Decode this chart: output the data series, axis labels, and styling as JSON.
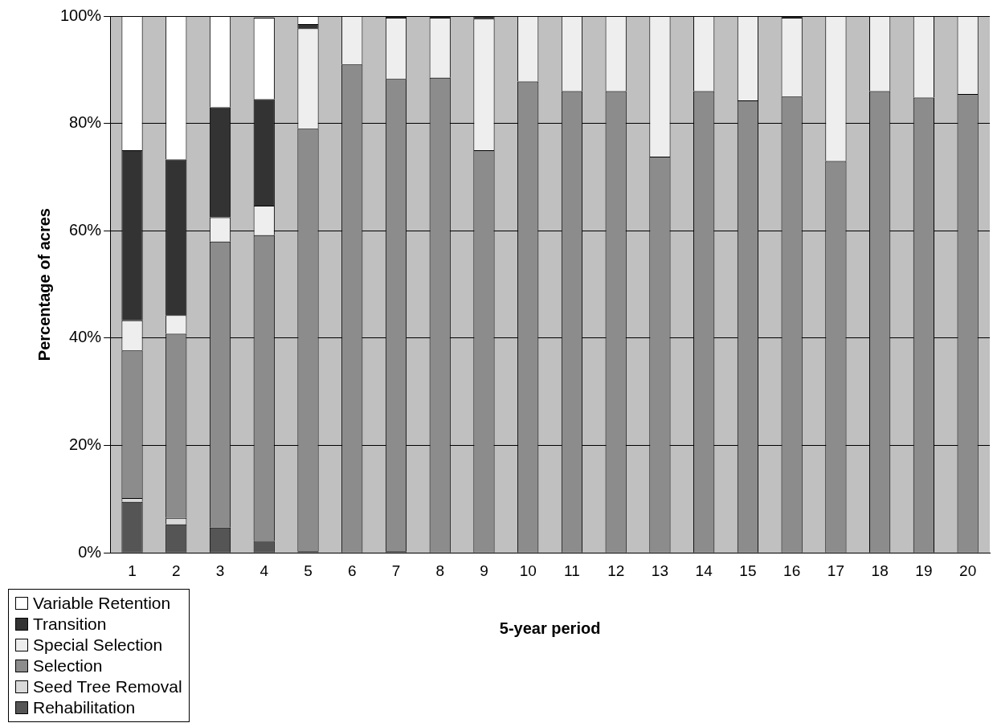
{
  "chart_data": {
    "type": "bar",
    "stacked": true,
    "xlabel": "5-year period",
    "ylabel": "Percentage of acres",
    "categories": [
      "1",
      "2",
      "3",
      "4",
      "5",
      "6",
      "7",
      "8",
      "9",
      "10",
      "11",
      "12",
      "13",
      "14",
      "15",
      "16",
      "17",
      "18",
      "19",
      "20"
    ],
    "ylim": [
      0,
      100
    ],
    "yticks": [
      {
        "value": 0,
        "label": "0%"
      },
      {
        "value": 20,
        "label": "20%"
      },
      {
        "value": 40,
        "label": "40%"
      },
      {
        "value": 60,
        "label": "60%"
      },
      {
        "value": 80,
        "label": "80%"
      },
      {
        "value": 100,
        "label": "100%"
      }
    ],
    "grid": "y",
    "legend": "bottom left",
    "series": [
      {
        "name": "Rehabilitation",
        "color": "#555555",
        "values": [
          9.5,
          5.3,
          4.7,
          2.2,
          0.3,
          0,
          0.3,
          0,
          0,
          0,
          0,
          0,
          0,
          0,
          0,
          0,
          0,
          0,
          0,
          0
        ]
      },
      {
        "name": "Seed Tree Removal",
        "color": "#d9d9d9",
        "values": [
          0.7,
          1.2,
          0,
          null,
          0,
          0,
          0,
          0,
          0,
          0,
          0,
          0,
          0,
          0,
          0,
          0,
          0,
          0,
          0,
          0
        ]
      },
      {
        "name": "Selection",
        "color": "#8c8c8c",
        "values": [
          27.5,
          34.3,
          53.3,
          57,
          78.7,
          91,
          88,
          88.5,
          75,
          87.8,
          86,
          86,
          73.8,
          86,
          84.3,
          85,
          73,
          86,
          84.8,
          85.5
        ]
      },
      {
        "name": "Special Selection",
        "color": "#eeeeee",
        "values": [
          5.6,
          3.5,
          4.5,
          5.5,
          18.7,
          9,
          11.4,
          11.2,
          24.5,
          12.2,
          14,
          14,
          26.2,
          14,
          15.7,
          14.7,
          27,
          14,
          15.2,
          14.5
        ]
      },
      {
        "name": "Transition",
        "color": "#333333",
        "values": [
          31.7,
          29,
          20.5,
          19.8,
          0.8,
          0,
          0.3,
          0.3,
          0.5,
          0,
          0,
          0,
          0,
          0,
          0,
          0.3,
          0,
          0,
          0,
          0
        ]
      },
      {
        "name": "Variable Retention",
        "color": "#ffffff",
        "values": [
          25,
          26.7,
          17,
          15.2,
          1.5,
          0,
          0,
          0,
          0,
          0,
          0,
          0,
          0,
          0,
          0,
          0,
          0,
          0,
          0,
          0
        ]
      }
    ]
  }
}
